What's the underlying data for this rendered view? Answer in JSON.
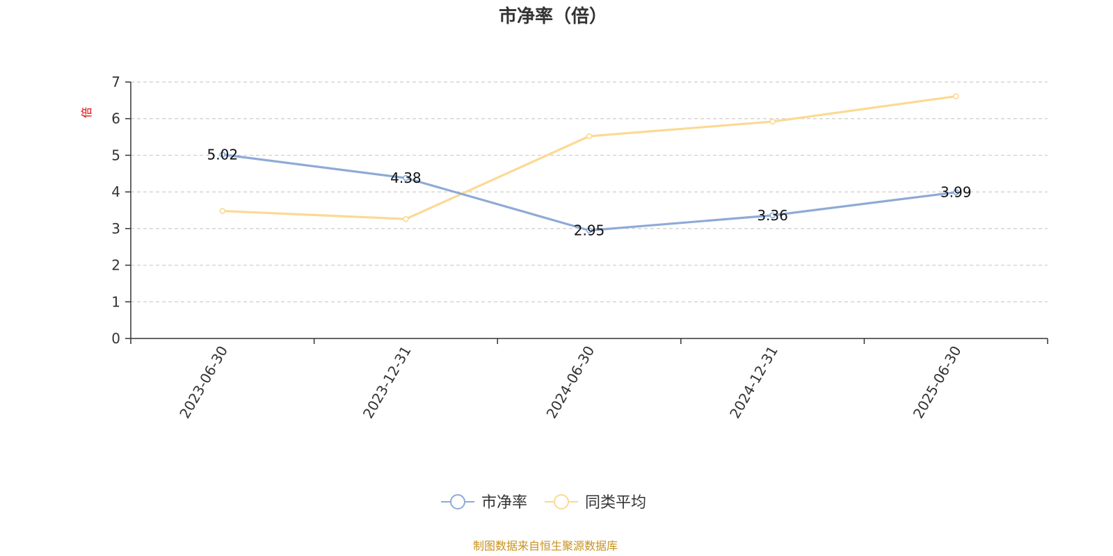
{
  "chart_data": {
    "type": "line",
    "title": "市净率（倍）",
    "ylabel": "倍",
    "ylim": [
      0,
      7
    ],
    "yticks": [
      0,
      1,
      2,
      3,
      4,
      5,
      6,
      7
    ],
    "grid": true,
    "legend_position": "bottom-center",
    "categories": [
      "2023-06-30",
      "2023-12-31",
      "2024-06-30",
      "2024-12-31",
      "2025-06-30"
    ],
    "series": [
      {
        "name": "市净率",
        "color": "#8eaad6",
        "values": [
          5.02,
          4.38,
          2.95,
          3.36,
          3.99
        ],
        "labels": [
          "5.02",
          "4.38",
          "2.95",
          "3.36",
          "3.99"
        ]
      },
      {
        "name": "同类平均",
        "color": "#fcd993",
        "values": [
          3.48,
          3.26,
          5.52,
          5.92,
          6.61
        ]
      }
    ],
    "source_note": "制图数据来自恒生聚源数据库"
  }
}
